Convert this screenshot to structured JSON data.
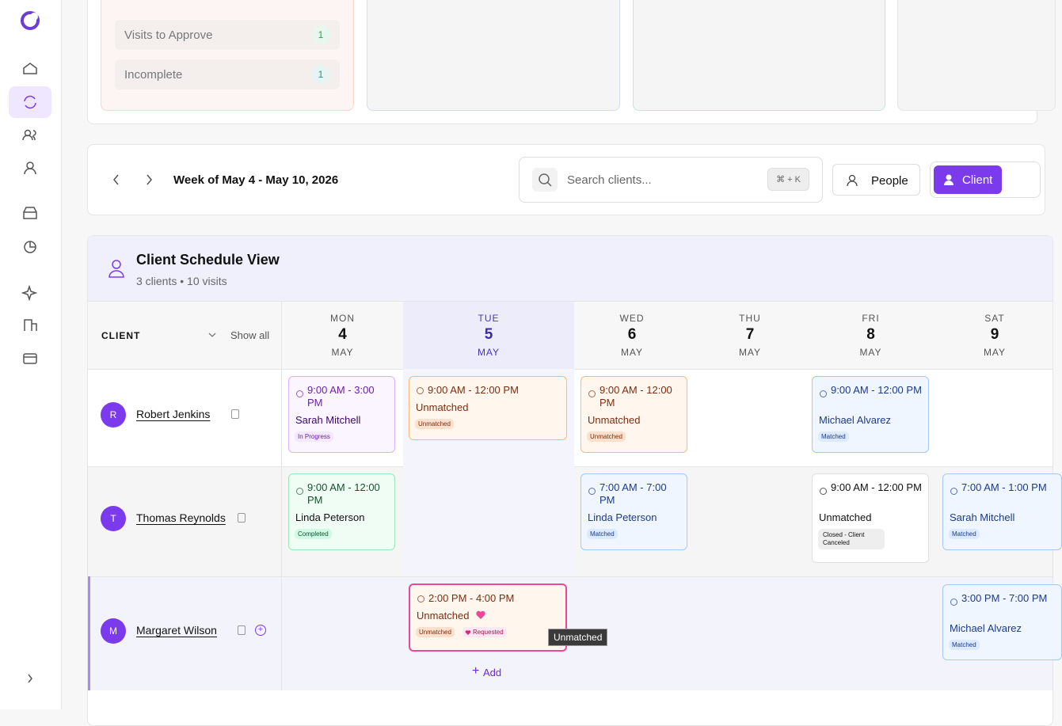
{
  "top_cards": {
    "rows": [
      {
        "label": "Visits to Approve",
        "count": "1"
      },
      {
        "label": "Incomplete",
        "count": "1"
      }
    ]
  },
  "toolbar": {
    "week": "Week of May 4 - May 10, 2026",
    "search_placeholder": "Search clients...",
    "shortcut": "⌘ + K",
    "people": "People",
    "client": "Client"
  },
  "schedule": {
    "title": "Client Schedule View",
    "subtitle": "3 clients • 10 visits",
    "client_header": "CLIENT",
    "show_all": "Show all",
    "add": "Add",
    "tooltip": "Unmatched",
    "days": [
      {
        "dow": "MON",
        "day": "4",
        "month": "MAY"
      },
      {
        "dow": "TUE",
        "day": "5",
        "month": "MAY"
      },
      {
        "dow": "WED",
        "day": "6",
        "month": "MAY"
      },
      {
        "dow": "THU",
        "day": "7",
        "month": "MAY"
      },
      {
        "dow": "FRI",
        "day": "8",
        "month": "MAY"
      },
      {
        "dow": "SAT",
        "day": "9",
        "month": "MAY"
      }
    ],
    "clients": [
      {
        "initial": "R",
        "name": "Robert Jenkins",
        "visits": [
          {
            "time": "9:00 AM - 3:00 PM",
            "caregiver": "Sarah Mitchell",
            "status": "In Progress"
          },
          {
            "time": "9:00 AM - 12:00 PM",
            "caregiver": "Unmatched",
            "status": "Unmatched"
          },
          {
            "time": "9:00 AM - 12:00 PM",
            "caregiver": "Unmatched",
            "status": "Unmatched"
          },
          {
            "time": "9:00 AM - 12:00 PM",
            "caregiver": "Michael Alvarez",
            "status": "Matched"
          }
        ]
      },
      {
        "initial": "T",
        "name": "Thomas Reynolds",
        "visits": [
          {
            "time": "9:00 AM - 12:00 PM",
            "caregiver": "Linda Peterson",
            "status": "Completed"
          },
          {
            "time": "7:00 AM - 7:00 PM",
            "caregiver": "Linda Peterson",
            "status": "Matched"
          },
          {
            "time": "9:00 AM - 12:00 PM",
            "caregiver": "Unmatched",
            "status": "Closed - Client Canceled"
          },
          {
            "time": "7:00 AM - 1:00 PM",
            "caregiver": "Sarah Mitchell",
            "status": "Matched"
          }
        ]
      },
      {
        "initial": "M",
        "name": "Margaret Wilson",
        "visits": [
          {
            "time": "2:00 PM - 4:00 PM",
            "caregiver": "Unmatched",
            "status": "Unmatched",
            "tag": "Requested"
          },
          {
            "time": "3:00 PM - 7:00 PM",
            "caregiver": "Michael Alvarez",
            "status": "Matched"
          }
        ]
      }
    ]
  }
}
